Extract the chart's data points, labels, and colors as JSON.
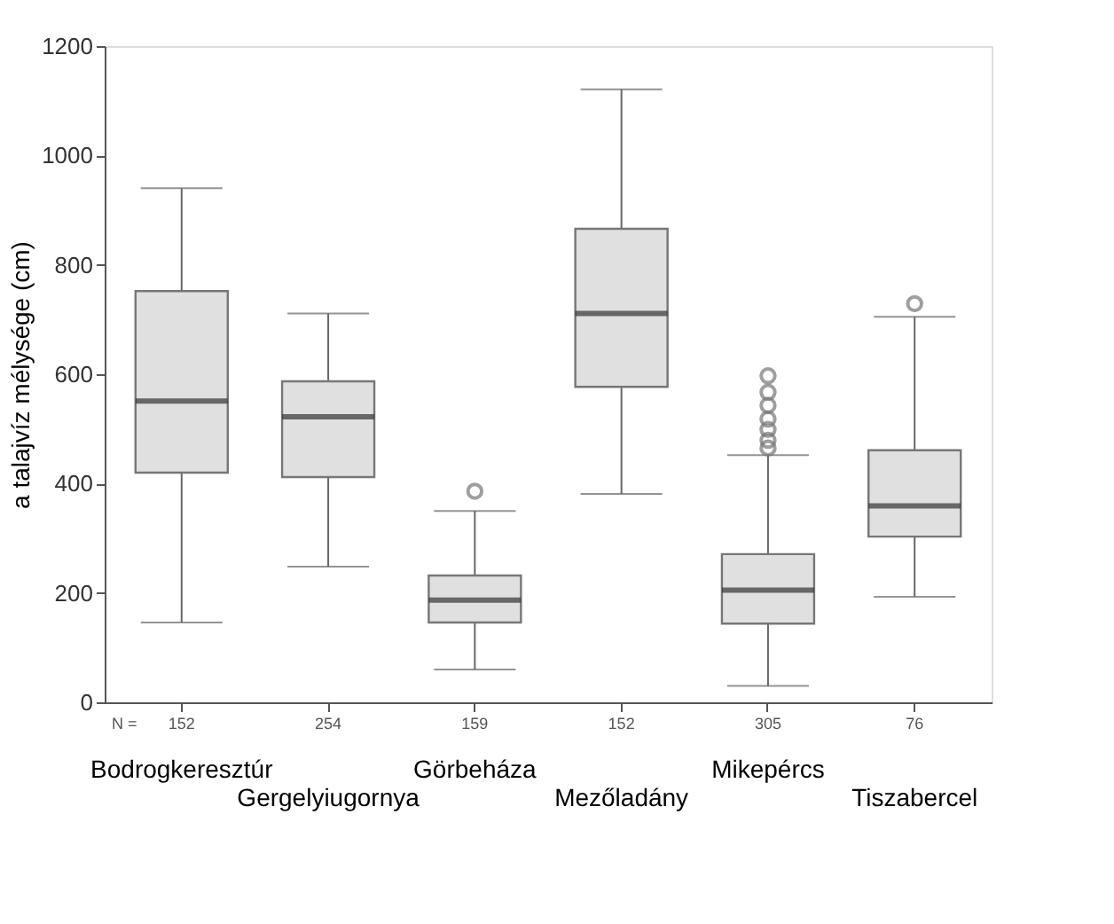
{
  "chart_data": {
    "type": "box",
    "categories": [
      "Bodrogkeresztúr",
      "Gergelyiugornya",
      "Görbeháza",
      "Mezőladány",
      "Mikepércs",
      "Tiszabercel"
    ],
    "ylabel": "a talajvíz mélysége (cm)",
    "ylim": [
      0,
      1200
    ],
    "yticks": [
      0,
      200,
      400,
      600,
      800,
      1000,
      1200
    ],
    "grid": false,
    "annotations": [
      "N =",
      "152",
      "254",
      "159",
      "152",
      "305",
      "76"
    ],
    "series": [
      {
        "color": "#e0e0e0",
        "boxes": [
          {
            "low": 146,
            "q1": 420,
            "median": 551,
            "q3": 752,
            "high": 940
          },
          {
            "low": 248,
            "q1": 412,
            "median": 522,
            "q3": 587,
            "high": 711
          },
          {
            "low": 60,
            "q1": 146,
            "median": 187,
            "q3": 232,
            "high": 350,
            "outliers": [
              386
            ]
          },
          {
            "low": 381,
            "q1": 577,
            "median": 711,
            "q3": 866,
            "high": 1121
          },
          {
            "low": 30,
            "q1": 144,
            "median": 205,
            "q3": 271,
            "high": 452,
            "outliers": [
              465,
              479,
              499,
              518,
              543,
              567,
              597
            ]
          },
          {
            "low": 193,
            "q1": 303,
            "median": 359,
            "q3": 461,
            "high": 705,
            "outliers": [
              729
            ]
          }
        ]
      }
    ]
  }
}
